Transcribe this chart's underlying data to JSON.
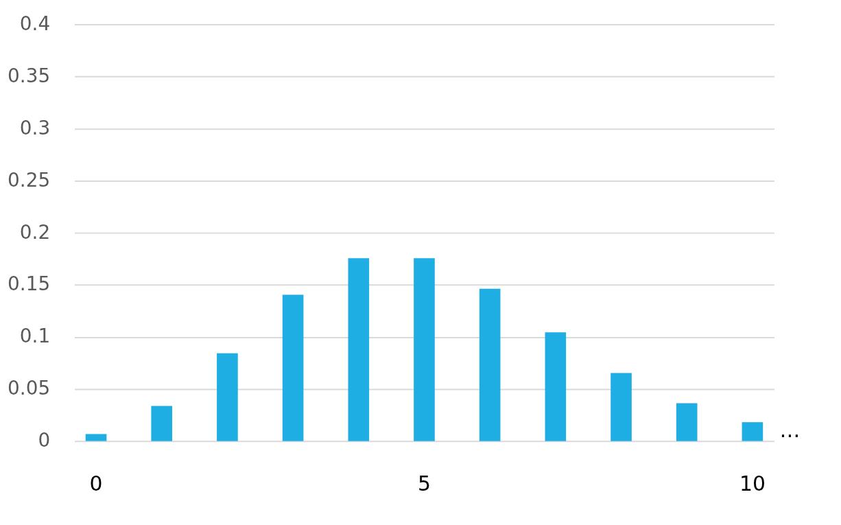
{
  "chart_data": {
    "type": "bar",
    "categories": [
      "0",
      null,
      null,
      null,
      null,
      "5",
      null,
      null,
      null,
      null,
      "10"
    ],
    "values": [
      0.0067,
      0.0337,
      0.0842,
      0.1404,
      0.1755,
      0.1755,
      0.1462,
      0.1044,
      0.0653,
      0.0363,
      0.0181
    ],
    "color": "#1eaee3",
    "ylim": [
      0,
      0.4
    ],
    "yticks": [
      0,
      0.05,
      0.1,
      0.15,
      0.2,
      0.25,
      0.3,
      0.35,
      0.4
    ],
    "grid": "y",
    "annotations": [
      "…"
    ]
  }
}
